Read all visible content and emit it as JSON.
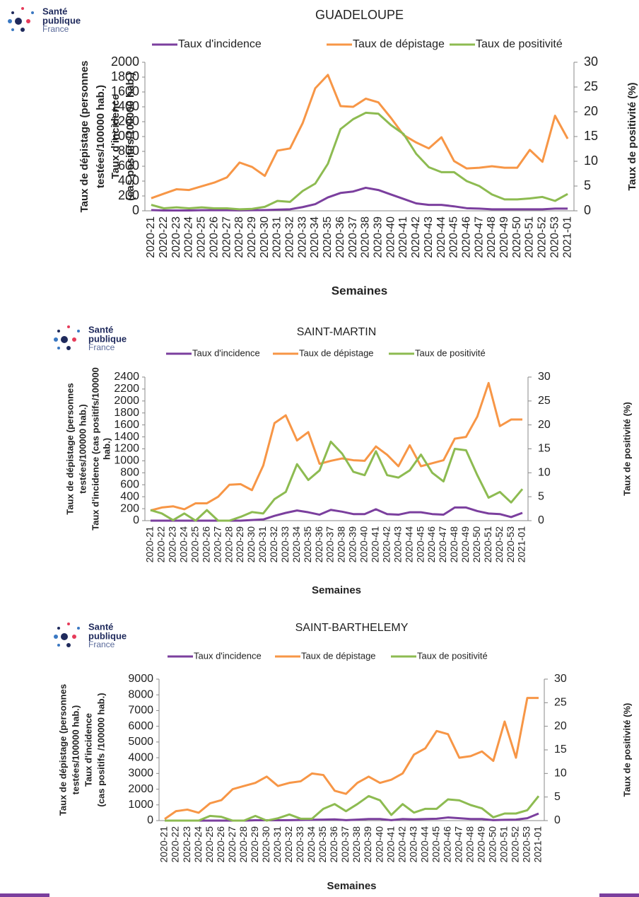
{
  "logo": {
    "line1": "Santé",
    "line2": "publique",
    "line3": "France"
  },
  "chart_data": [
    {
      "type": "line",
      "title": "GUADELOUPE",
      "categories": [
        "2020-21",
        "2020-22",
        "2020-23",
        "2020-24",
        "2020-25",
        "2020-26",
        "2020-27",
        "2020-28",
        "2020-29",
        "2020-30",
        "2020-31",
        "2020-32",
        "2020-33",
        "2020-34",
        "2020-35",
        "2020-36",
        "2020-37",
        "2020-38",
        "2020-39",
        "2020-40",
        "2020-41",
        "2020-42",
        "2020-43",
        "2020-44",
        "2020-45",
        "2020-46",
        "2020-47",
        "2020-48",
        "2020-49",
        "2020-50",
        "2020-51",
        "2020-52",
        "2020-53",
        "2021-01"
      ],
      "series": [
        {
          "name": "Taux d'incidence",
          "color": "#7b3f9e",
          "values": [
            10,
            5,
            5,
            5,
            8,
            8,
            8,
            6,
            8,
            10,
            15,
            20,
            50,
            90,
            180,
            240,
            260,
            310,
            280,
            220,
            160,
            100,
            80,
            80,
            60,
            35,
            30,
            20,
            20,
            20,
            20,
            20,
            30,
            30
          ]
        },
        {
          "name": "Taux de dépistage",
          "color": "#f79646",
          "values": [
            170,
            230,
            290,
            280,
            330,
            380,
            450,
            650,
            590,
            470,
            810,
            840,
            1180,
            1650,
            1830,
            1410,
            1400,
            1510,
            1460,
            1250,
            1020,
            920,
            840,
            990,
            670,
            570,
            580,
            600,
            580,
            580,
            820,
            660,
            1280,
            970
          ]
        },
        {
          "name": "Taux de positivité",
          "color": "#8dbb51",
          "axis": "y2",
          "values": [
            1.2,
            0.5,
            0.7,
            0.5,
            0.7,
            0.5,
            0.5,
            0.3,
            0.4,
            0.8,
            2,
            1.8,
            4,
            5.5,
            9.5,
            16.5,
            18.5,
            19.8,
            19.6,
            17.3,
            15.5,
            11.5,
            8.8,
            7.8,
            7.8,
            6,
            5,
            3.3,
            2.3,
            2.3,
            2.5,
            2.8,
            2,
            3.4
          ]
        }
      ],
      "ylim": [
        0,
        2000
      ],
      "yticks": [
        0,
        200,
        400,
        600,
        800,
        1000,
        1200,
        1400,
        1600,
        1800,
        2000
      ],
      "y2lim": [
        0,
        30
      ],
      "y2ticks": [
        0,
        5,
        10,
        15,
        20,
        25,
        30
      ],
      "xlabel": "Semaines",
      "ylabel": [
        "Taux de dépistage (personnes",
        "testées/100000 hab.)",
        "Taux d'incidence",
        "(cas positifs/100000  hab.)"
      ],
      "y2label": "Taux de positivité (%)",
      "legend": "top"
    },
    {
      "type": "line",
      "title": "SAINT-MARTIN",
      "categories": [
        "2020-21",
        "2020-22",
        "2020-23",
        "2020-24",
        "2020-25",
        "2020-26",
        "2020-27",
        "2020-28",
        "2020-29",
        "2020-30",
        "2020-31",
        "2020-32",
        "2020-33",
        "2020-34",
        "2020-35",
        "2020-36",
        "2020-37",
        "2020-38",
        "2020-39",
        "2020-40",
        "2020-41",
        "2020-42",
        "2020-43",
        "2020-44",
        "2020-45",
        "2020-46",
        "2020-47",
        "2020-48",
        "2020-49",
        "2020-50",
        "2020-51",
        "2020-52",
        "2020-53",
        "2021-01"
      ],
      "series": [
        {
          "name": "Taux d'incidence",
          "color": "#7b3f9e",
          "values": [
            0,
            0,
            0,
            0,
            0,
            0,
            0,
            0,
            0,
            10,
            20,
            80,
            130,
            170,
            140,
            100,
            180,
            150,
            110,
            110,
            190,
            110,
            100,
            140,
            140,
            110,
            100,
            220,
            220,
            160,
            120,
            110,
            60,
            130
          ]
        },
        {
          "name": "Taux de dépistage",
          "color": "#f79646",
          "values": [
            170,
            220,
            240,
            190,
            290,
            290,
            400,
            600,
            610,
            510,
            920,
            1630,
            1760,
            1340,
            1480,
            950,
            1000,
            1040,
            1010,
            1000,
            1240,
            1100,
            910,
            1260,
            910,
            960,
            1010,
            1370,
            1400,
            1740,
            2300,
            1580,
            1690,
            1690
          ]
        },
        {
          "name": "Taux de positivité",
          "color": "#8dbb51",
          "axis": "y2",
          "values": [
            2.2,
            1.5,
            0.1,
            1.5,
            0,
            2.2,
            0,
            0,
            0.8,
            1.8,
            1.5,
            4.5,
            6,
            11.8,
            8.5,
            10.5,
            16.5,
            14,
            10.2,
            9.5,
            14.5,
            9.5,
            9,
            10.5,
            13.8,
            10,
            8.2,
            15,
            14.7,
            9.5,
            4.8,
            6,
            3.8,
            6.6
          ]
        }
      ],
      "ylim": [
        0,
        2400
      ],
      "yticks": [
        0,
        200,
        400,
        600,
        800,
        1000,
        1200,
        1400,
        1600,
        1800,
        2000,
        2200,
        2400
      ],
      "y2lim": [
        0,
        30
      ],
      "y2ticks": [
        0,
        5,
        10,
        15,
        20,
        25,
        30
      ],
      "xlabel": "Semaines",
      "ylabel": [
        "Taux de dépistage (personnes",
        "testées/100000 hab.)",
        "Taux d'incidence (cas positifs/100000",
        "hab.)"
      ],
      "y2label": "Taux de positivité (%)",
      "legend": "top"
    },
    {
      "type": "line",
      "title": "SAINT-BARTHELEMY",
      "categories": [
        "2020-21",
        "2020-22",
        "2020-23",
        "2020-24",
        "2020-25",
        "2020-26",
        "2020-27",
        "2020-28",
        "2020-29",
        "2020-30",
        "2020-31",
        "2020-32",
        "2020-33",
        "2020-34",
        "2020-35",
        "2020-36",
        "2020-37",
        "2020-38",
        "2020-39",
        "2020-40",
        "2020-41",
        "2020-42",
        "2020-43",
        "2020-44",
        "2020-45",
        "2020-46",
        "2020-47",
        "2020-48",
        "2020-49",
        "2020-50",
        "2020-51",
        "2020-52",
        "2020-53",
        "2021-01"
      ],
      "series": [
        {
          "name": "Taux d'incidence",
          "color": "#7b3f9e",
          "values": [
            0,
            0,
            0,
            0,
            0,
            0,
            0,
            0,
            20,
            20,
            20,
            30,
            40,
            50,
            60,
            80,
            30,
            60,
            100,
            100,
            30,
            100,
            80,
            100,
            120,
            200,
            150,
            100,
            100,
            30,
            50,
            60,
            150,
            450
          ]
        },
        {
          "name": "Taux de dépistage",
          "color": "#f79646",
          "values": [
            100,
            600,
            700,
            500,
            1100,
            1300,
            2000,
            2200,
            2400,
            2800,
            2200,
            2400,
            2500,
            3000,
            2900,
            1900,
            1700,
            2400,
            2800,
            2400,
            2600,
            3000,
            4200,
            4600,
            5700,
            5500,
            4000,
            4100,
            4400,
            3800,
            6300,
            4000,
            7800,
            7800
          ]
        },
        {
          "name": "Taux de positivité",
          "color": "#8dbb51",
          "axis": "y2",
          "values": [
            0,
            0,
            0,
            0,
            1,
            0.8,
            0,
            0,
            1,
            0,
            0.5,
            1.3,
            0.4,
            0.4,
            2.5,
            3.5,
            2,
            3.5,
            5.2,
            4.3,
            1.2,
            3.5,
            1.7,
            2.5,
            2.5,
            4.5,
            4.3,
            3.3,
            2.6,
            0.7,
            1.5,
            1.5,
            2.2,
            5.2
          ]
        }
      ],
      "ylim": [
        0,
        9000
      ],
      "yticks": [
        0,
        1000,
        2000,
        3000,
        4000,
        5000,
        6000,
        7000,
        8000,
        9000
      ],
      "y2lim": [
        0,
        30
      ],
      "y2ticks": [
        0,
        5,
        10,
        15,
        20,
        25,
        30
      ],
      "xlabel": "Semaines",
      "ylabel": [
        "Taux de dépistage (personnes",
        "testées/100000  hab.)",
        "Taux d'incidence",
        "(cas positifs /100000  hab.)"
      ],
      "y2label": "Taux de positivité (%)",
      "legend": "top"
    }
  ]
}
